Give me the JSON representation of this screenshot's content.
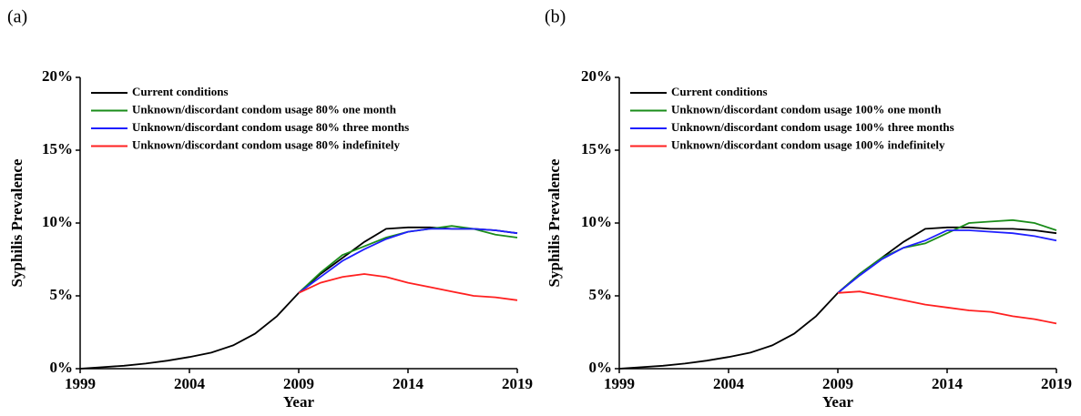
{
  "chart_data": [
    {
      "type": "line",
      "panel": "(a)",
      "ylabel": "Syphilis Prevalence",
      "xlabel": "Year",
      "x": [
        1999,
        2000,
        2001,
        2002,
        2003,
        2004,
        2005,
        2006,
        2007,
        2008,
        2009,
        2010,
        2011,
        2012,
        2013,
        2014,
        2015,
        2016,
        2017,
        2018,
        2019
      ],
      "xlim": [
        1999,
        2019
      ],
      "xticks": [
        1999,
        2004,
        2009,
        2014,
        2019
      ],
      "ylim": [
        0,
        20
      ],
      "yticks": [
        {
          "value": 0,
          "label": "0%"
        },
        {
          "value": 5,
          "label": "5%"
        },
        {
          "value": 10,
          "label": "10%"
        },
        {
          "value": 15,
          "label": "15%"
        },
        {
          "value": 20,
          "label": "20%"
        }
      ],
      "legend": "upper left",
      "series": [
        {
          "name": "Current conditions",
          "color": "#000000",
          "values": [
            0,
            0.1,
            0.2,
            0.35,
            0.55,
            0.8,
            1.1,
            1.6,
            2.4,
            3.6,
            5.2,
            6.5,
            7.6,
            8.7,
            9.6,
            9.7,
            9.7,
            9.6,
            9.6,
            9.5,
            9.3
          ]
        },
        {
          "name": "Unknown/discordant condom usage 80% one month",
          "color": "#1a8c1a",
          "values": [
            null,
            null,
            null,
            null,
            null,
            null,
            null,
            null,
            null,
            null,
            5.2,
            6.6,
            7.8,
            8.4,
            9.0,
            9.4,
            9.6,
            9.8,
            9.6,
            9.2,
            9.0
          ]
        },
        {
          "name": "Unknown/discordant condom usage 80% three months",
          "color": "#1f1fff",
          "values": [
            null,
            null,
            null,
            null,
            null,
            null,
            null,
            null,
            null,
            null,
            5.2,
            6.3,
            7.4,
            8.2,
            8.9,
            9.4,
            9.6,
            9.6,
            9.6,
            9.5,
            9.3
          ]
        },
        {
          "name": "Unknown/discordant condom usage 80% indefinitely",
          "color": "#ff2020",
          "values": [
            null,
            null,
            null,
            null,
            null,
            null,
            null,
            null,
            null,
            null,
            5.2,
            5.9,
            6.3,
            6.5,
            6.3,
            5.9,
            5.6,
            5.3,
            5.0,
            4.9,
            4.7
          ]
        }
      ]
    },
    {
      "type": "line",
      "panel": "(b)",
      "ylabel": "Syphilis Prevalence",
      "xlabel": "Year",
      "x": [
        1999,
        2000,
        2001,
        2002,
        2003,
        2004,
        2005,
        2006,
        2007,
        2008,
        2009,
        2010,
        2011,
        2012,
        2013,
        2014,
        2015,
        2016,
        2017,
        2018,
        2019
      ],
      "xlim": [
        1999,
        2019
      ],
      "xticks": [
        1999,
        2004,
        2009,
        2014,
        2019
      ],
      "ylim": [
        0,
        20
      ],
      "yticks": [
        {
          "value": 0,
          "label": "0%"
        },
        {
          "value": 5,
          "label": "5%"
        },
        {
          "value": 10,
          "label": "10%"
        },
        {
          "value": 15,
          "label": "15%"
        },
        {
          "value": 20,
          "label": "20%"
        }
      ],
      "legend": "upper left",
      "series": [
        {
          "name": "Current conditions",
          "color": "#000000",
          "values": [
            0,
            0.1,
            0.2,
            0.35,
            0.55,
            0.8,
            1.1,
            1.6,
            2.4,
            3.6,
            5.2,
            6.5,
            7.6,
            8.7,
            9.6,
            9.7,
            9.7,
            9.6,
            9.6,
            9.5,
            9.3
          ]
        },
        {
          "name": "Unknown/discordant condom usage 100% one month",
          "color": "#1a8c1a",
          "values": [
            null,
            null,
            null,
            null,
            null,
            null,
            null,
            null,
            null,
            null,
            5.2,
            6.5,
            7.6,
            8.3,
            8.6,
            9.3,
            10.0,
            10.1,
            10.2,
            10.0,
            9.5
          ]
        },
        {
          "name": "Unknown/discordant condom usage 100% three months",
          "color": "#1f1fff",
          "values": [
            null,
            null,
            null,
            null,
            null,
            null,
            null,
            null,
            null,
            null,
            5.2,
            6.4,
            7.5,
            8.3,
            8.8,
            9.5,
            9.5,
            9.4,
            9.3,
            9.1,
            8.8
          ]
        },
        {
          "name": "Unknown/discordant condom usage 100% indefinitely",
          "color": "#ff2020",
          "values": [
            null,
            null,
            null,
            null,
            null,
            null,
            null,
            null,
            null,
            null,
            5.2,
            5.3,
            5.0,
            4.7,
            4.4,
            4.2,
            4.0,
            3.9,
            3.6,
            3.4,
            3.1
          ]
        }
      ]
    }
  ]
}
